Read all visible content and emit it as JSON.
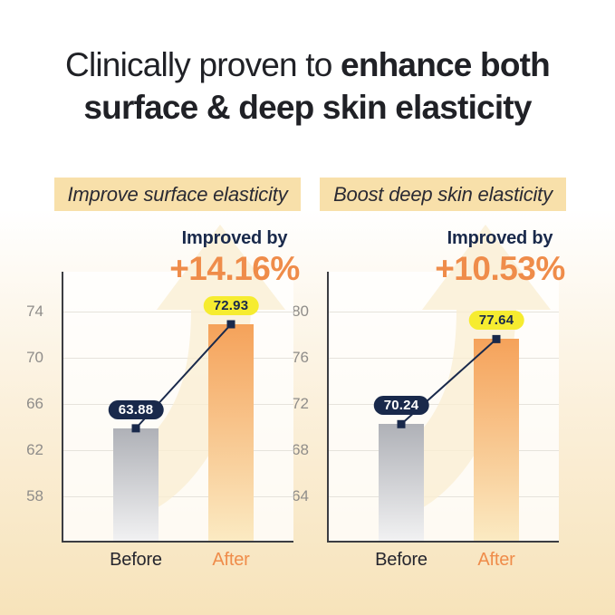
{
  "title": {
    "line1_regular": "Clinically proven to ",
    "line1_bold": "enhance both",
    "line2_bold": "surface & deep skin elasticity"
  },
  "colors": {
    "accent_orange": "#EF8C4A",
    "navy": "#19294B",
    "yellow_pill": "#F6EC30",
    "badge_bg": "#F8E0AA",
    "bar_before_top": "#AFB1B7",
    "bar_before_bottom": "#F1F1F2",
    "bar_after_top": "#F5A25A",
    "bar_after_bottom": "#FBEAC2",
    "arrow_watermark": "#F9EDD2",
    "gridline": "#E6E3DC",
    "axis": "#3C3D42",
    "tick_text": "#8F8D8A",
    "text_dark": "#202126"
  },
  "chart_data": [
    {
      "type": "bar",
      "title": "Improve surface elasticity",
      "subtitle": "Improved by",
      "improvement": "+14.16%",
      "categories": [
        "Before",
        "After"
      ],
      "values": [
        63.88,
        72.93
      ],
      "value_labels": [
        "63.88",
        "72.93"
      ],
      "series_colors": [
        "gray-gradient",
        "orange-gradient"
      ],
      "yticks": [
        58,
        62,
        66,
        70,
        74
      ],
      "ylim": [
        54.1,
        77.5
      ],
      "grid": true,
      "legend": false,
      "annotation": "trend line connecting bar tops with square markers"
    },
    {
      "type": "bar",
      "title": "Boost deep skin elasticity",
      "subtitle": "Improved by",
      "improvement": "+10.53%",
      "categories": [
        "Before",
        "After"
      ],
      "values": [
        70.24,
        77.64
      ],
      "value_labels": [
        "70.24",
        "77.64"
      ],
      "series_colors": [
        "gray-gradient",
        "orange-gradient"
      ],
      "yticks": [
        64,
        68,
        72,
        76,
        80
      ],
      "ylim": [
        60.1,
        83.5
      ],
      "grid": true,
      "legend": false,
      "annotation": "trend line connecting bar tops with square markers"
    }
  ]
}
